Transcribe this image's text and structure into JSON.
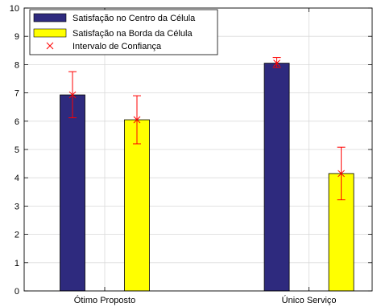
{
  "chart_data": {
    "type": "bar",
    "title": "",
    "xlabel": "",
    "ylabel": "",
    "categories": [
      "Ótimo Proposto",
      "Único Serviço"
    ],
    "ylim": [
      0,
      10
    ],
    "yticks": [
      0,
      1,
      2,
      3,
      4,
      5,
      6,
      7,
      8,
      9,
      10
    ],
    "grid": true,
    "legend_position": "top-left",
    "series": [
      {
        "name": "Satisfação no Centro da Célula",
        "color": "#2e2a7e",
        "values": [
          6.93,
          8.05
        ],
        "ci_low": [
          6.12,
          7.9
        ],
        "ci_high": [
          7.75,
          8.25
        ]
      },
      {
        "name": "Satisfação na Borda da Célula",
        "color": "#ffff00",
        "values": [
          6.05,
          4.15
        ],
        "ci_low": [
          5.2,
          3.22
        ],
        "ci_high": [
          6.9,
          5.08
        ]
      }
    ],
    "ci_legend_label": "Intervalo de Confiança",
    "ci_color": "#ff0000"
  }
}
